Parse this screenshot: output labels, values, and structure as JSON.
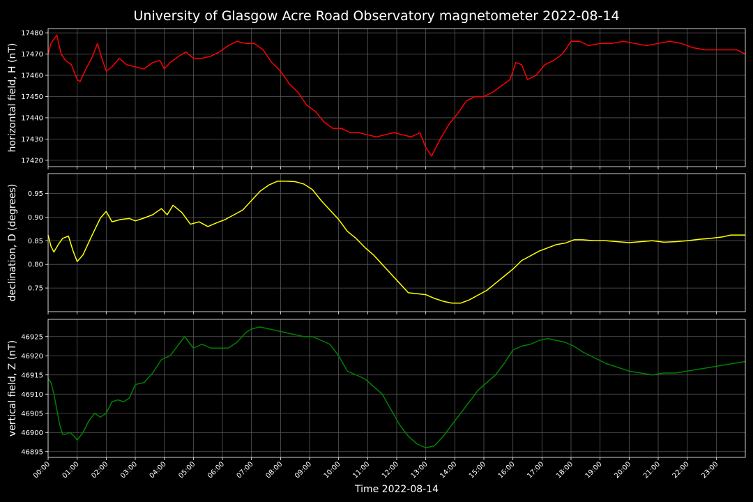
{
  "chart_data": {
    "type": "line",
    "title": "University of Glasgow Acre Road Observatory magnetometer 2022-08-14",
    "xlabel": "Time 2022-08-14",
    "x_unit": "hours",
    "xlim": [
      0,
      24
    ],
    "x_ticks": [
      "00:00",
      "01:00",
      "02:00",
      "03:00",
      "04:00",
      "05:00",
      "06:00",
      "07:00",
      "08:00",
      "09:00",
      "10:00",
      "11:00",
      "12:00",
      "13:00",
      "14:00",
      "15:00",
      "16:00",
      "17:00",
      "18:00",
      "19:00",
      "20:00",
      "21:00",
      "22:00",
      "23:00"
    ],
    "grid": true,
    "background": "#000000",
    "panels": [
      {
        "name": "horizontal-field",
        "ylabel": "horizontal field, H (nT)",
        "color": "#ff0000",
        "ylim": [
          17417,
          17482
        ],
        "y_ticks": [
          17420,
          17430,
          17440,
          17450,
          17460,
          17470,
          17480
        ],
        "x": [
          0,
          0.1,
          0.2,
          0.3,
          0.45,
          0.6,
          0.8,
          1.0,
          1.1,
          1.3,
          1.5,
          1.7,
          1.85,
          2.0,
          2.2,
          2.45,
          2.7,
          3.0,
          3.3,
          3.6,
          3.85,
          4.0,
          4.2,
          4.5,
          4.75,
          5.0,
          5.3,
          5.6,
          5.9,
          6.2,
          6.5,
          6.8,
          7.1,
          7.4,
          7.7,
          8.0,
          8.3,
          8.6,
          8.9,
          9.2,
          9.5,
          9.8,
          10.1,
          10.4,
          10.7,
          11.0,
          11.3,
          11.6,
          11.9,
          12.2,
          12.5,
          12.8,
          13.0,
          13.2,
          13.5,
          13.8,
          14.1,
          14.4,
          14.7,
          15.0,
          15.3,
          15.6,
          15.9,
          16.1,
          16.3,
          16.5,
          16.8,
          17.1,
          17.4,
          17.7,
          18.0,
          18.3,
          18.6,
          19.0,
          19.4,
          19.8,
          20.2,
          20.6,
          21.0,
          21.4,
          21.8,
          22.2,
          22.6,
          23.0,
          23.4,
          23.7,
          24.0
        ],
        "y": [
          17470,
          17475,
          17477,
          17479,
          17470,
          17467,
          17465,
          17458,
          17457,
          17463,
          17468,
          17475,
          17468,
          17462,
          17464,
          17468,
          17465,
          17464,
          17463,
          17466,
          17467,
          17463,
          17466,
          17469,
          17471,
          17468,
          17468,
          17469,
          17471,
          17474,
          17476,
          17475,
          17475,
          17472,
          17466,
          17462,
          17456,
          17452,
          17446,
          17443,
          17438,
          17435,
          17435,
          17433,
          17433,
          17432,
          17431,
          17432,
          17433,
          17432,
          17431,
          17433,
          17426,
          17422,
          17430,
          17437,
          17442,
          17448,
          17450,
          17450,
          17452,
          17455,
          17458,
          17466,
          17465,
          17458,
          17460,
          17465,
          17467,
          17470,
          17476,
          17476,
          17474,
          17475,
          17475,
          17476,
          17475,
          17474,
          17475,
          17476,
          17475,
          17473,
          17472,
          17472,
          17472,
          17472,
          17470
        ]
      },
      {
        "name": "declination",
        "ylabel": "declination, D (degrees)",
        "color": "#ffff00",
        "ylim": [
          0.7,
          0.992
        ],
        "y_ticks": [
          0.75,
          0.8,
          0.85,
          0.9,
          0.95
        ],
        "y_tick_labels": [
          "0.75",
          "0.80",
          "0.85",
          "0.90",
          "0.95"
        ],
        "x": [
          0,
          0.1,
          0.2,
          0.35,
          0.5,
          0.7,
          0.85,
          1.0,
          1.2,
          1.5,
          1.8,
          2.0,
          2.2,
          2.5,
          2.8,
          3.0,
          3.3,
          3.6,
          3.9,
          4.1,
          4.3,
          4.6,
          4.9,
          5.2,
          5.5,
          5.8,
          6.1,
          6.4,
          6.7,
          7.0,
          7.3,
          7.6,
          7.9,
          8.2,
          8.5,
          8.8,
          9.1,
          9.4,
          9.7,
          10.0,
          10.3,
          10.6,
          10.9,
          11.2,
          11.5,
          11.8,
          12.1,
          12.4,
          12.7,
          13.0,
          13.3,
          13.6,
          13.9,
          14.2,
          14.5,
          14.8,
          15.1,
          15.4,
          15.7,
          16.0,
          16.3,
          16.6,
          16.9,
          17.2,
          17.5,
          17.8,
          18.1,
          18.4,
          18.8,
          19.2,
          19.6,
          20.0,
          20.4,
          20.8,
          21.2,
          21.6,
          22.0,
          22.4,
          22.8,
          23.2,
          23.5,
          23.8,
          24.0
        ],
        "y": [
          0.862,
          0.838,
          0.826,
          0.842,
          0.855,
          0.86,
          0.83,
          0.806,
          0.82,
          0.86,
          0.898,
          0.912,
          0.89,
          0.895,
          0.897,
          0.892,
          0.898,
          0.905,
          0.918,
          0.905,
          0.925,
          0.91,
          0.885,
          0.89,
          0.88,
          0.888,
          0.895,
          0.905,
          0.915,
          0.935,
          0.955,
          0.968,
          0.976,
          0.976,
          0.975,
          0.97,
          0.958,
          0.935,
          0.915,
          0.895,
          0.87,
          0.855,
          0.836,
          0.82,
          0.8,
          0.78,
          0.76,
          0.74,
          0.738,
          0.736,
          0.728,
          0.722,
          0.718,
          0.718,
          0.725,
          0.735,
          0.745,
          0.76,
          0.775,
          0.79,
          0.808,
          0.818,
          0.828,
          0.835,
          0.842,
          0.845,
          0.852,
          0.852,
          0.85,
          0.85,
          0.848,
          0.846,
          0.848,
          0.85,
          0.847,
          0.848,
          0.85,
          0.853,
          0.855,
          0.858,
          0.862,
          0.862,
          0.862
        ]
      },
      {
        "name": "vertical-field",
        "ylabel": "vertical field, Z (nT)",
        "color": "#008000",
        "ylim": [
          46893.5,
          46929.5
        ],
        "y_ticks": [
          46895,
          46900,
          46905,
          46910,
          46915,
          46920,
          46925
        ],
        "x": [
          0,
          0.1,
          0.2,
          0.3,
          0.4,
          0.5,
          0.6,
          0.75,
          0.9,
          1.0,
          1.2,
          1.4,
          1.6,
          1.8,
          2.0,
          2.2,
          2.4,
          2.6,
          2.8,
          3.0,
          3.3,
          3.6,
          3.9,
          4.2,
          4.5,
          4.7,
          5.0,
          5.3,
          5.6,
          5.9,
          6.2,
          6.5,
          6.8,
          7.0,
          7.3,
          7.6,
          7.9,
          8.2,
          8.5,
          8.8,
          9.1,
          9.4,
          9.7,
          10.0,
          10.3,
          10.6,
          10.9,
          11.2,
          11.5,
          11.8,
          12.1,
          12.4,
          12.7,
          13.0,
          13.3,
          13.6,
          13.9,
          14.2,
          14.5,
          14.8,
          15.1,
          15.4,
          15.7,
          16.0,
          16.3,
          16.6,
          16.9,
          17.2,
          17.5,
          17.8,
          18.1,
          18.4,
          18.8,
          19.2,
          19.6,
          20.0,
          20.4,
          20.8,
          21.2,
          21.6,
          22.0,
          22.4,
          22.8,
          23.2,
          23.6,
          24.0
        ],
        "y": [
          46914,
          46913,
          46910,
          46906,
          46902,
          46899.5,
          46899.5,
          46900,
          46899,
          46898,
          46900,
          46903,
          46905,
          46904,
          46905,
          46908,
          46908.5,
          46908,
          46909,
          46912.5,
          46913,
          46915.5,
          46919,
          46920,
          46923,
          46925,
          46922,
          46923,
          46922,
          46922,
          46922,
          46923.5,
          46926,
          46927,
          46927.5,
          46927,
          46926.5,
          46926,
          46925.5,
          46925,
          46925,
          46924,
          46923,
          46920,
          46916,
          46915,
          46914,
          46912,
          46910,
          46906,
          46902,
          46899,
          46897,
          46896,
          46896.5,
          46899,
          46902,
          46905,
          46908,
          46911,
          46913,
          46915,
          46918,
          46921.5,
          46922.5,
          46923,
          46924,
          46924.5,
          46924,
          46923.5,
          46922.5,
          46921,
          46919.5,
          46918,
          46917,
          46916,
          46915.5,
          46915,
          46915.5,
          46915.5,
          46916,
          46916.5,
          46917,
          46917.5,
          46918,
          46918.5
        ]
      }
    ]
  }
}
